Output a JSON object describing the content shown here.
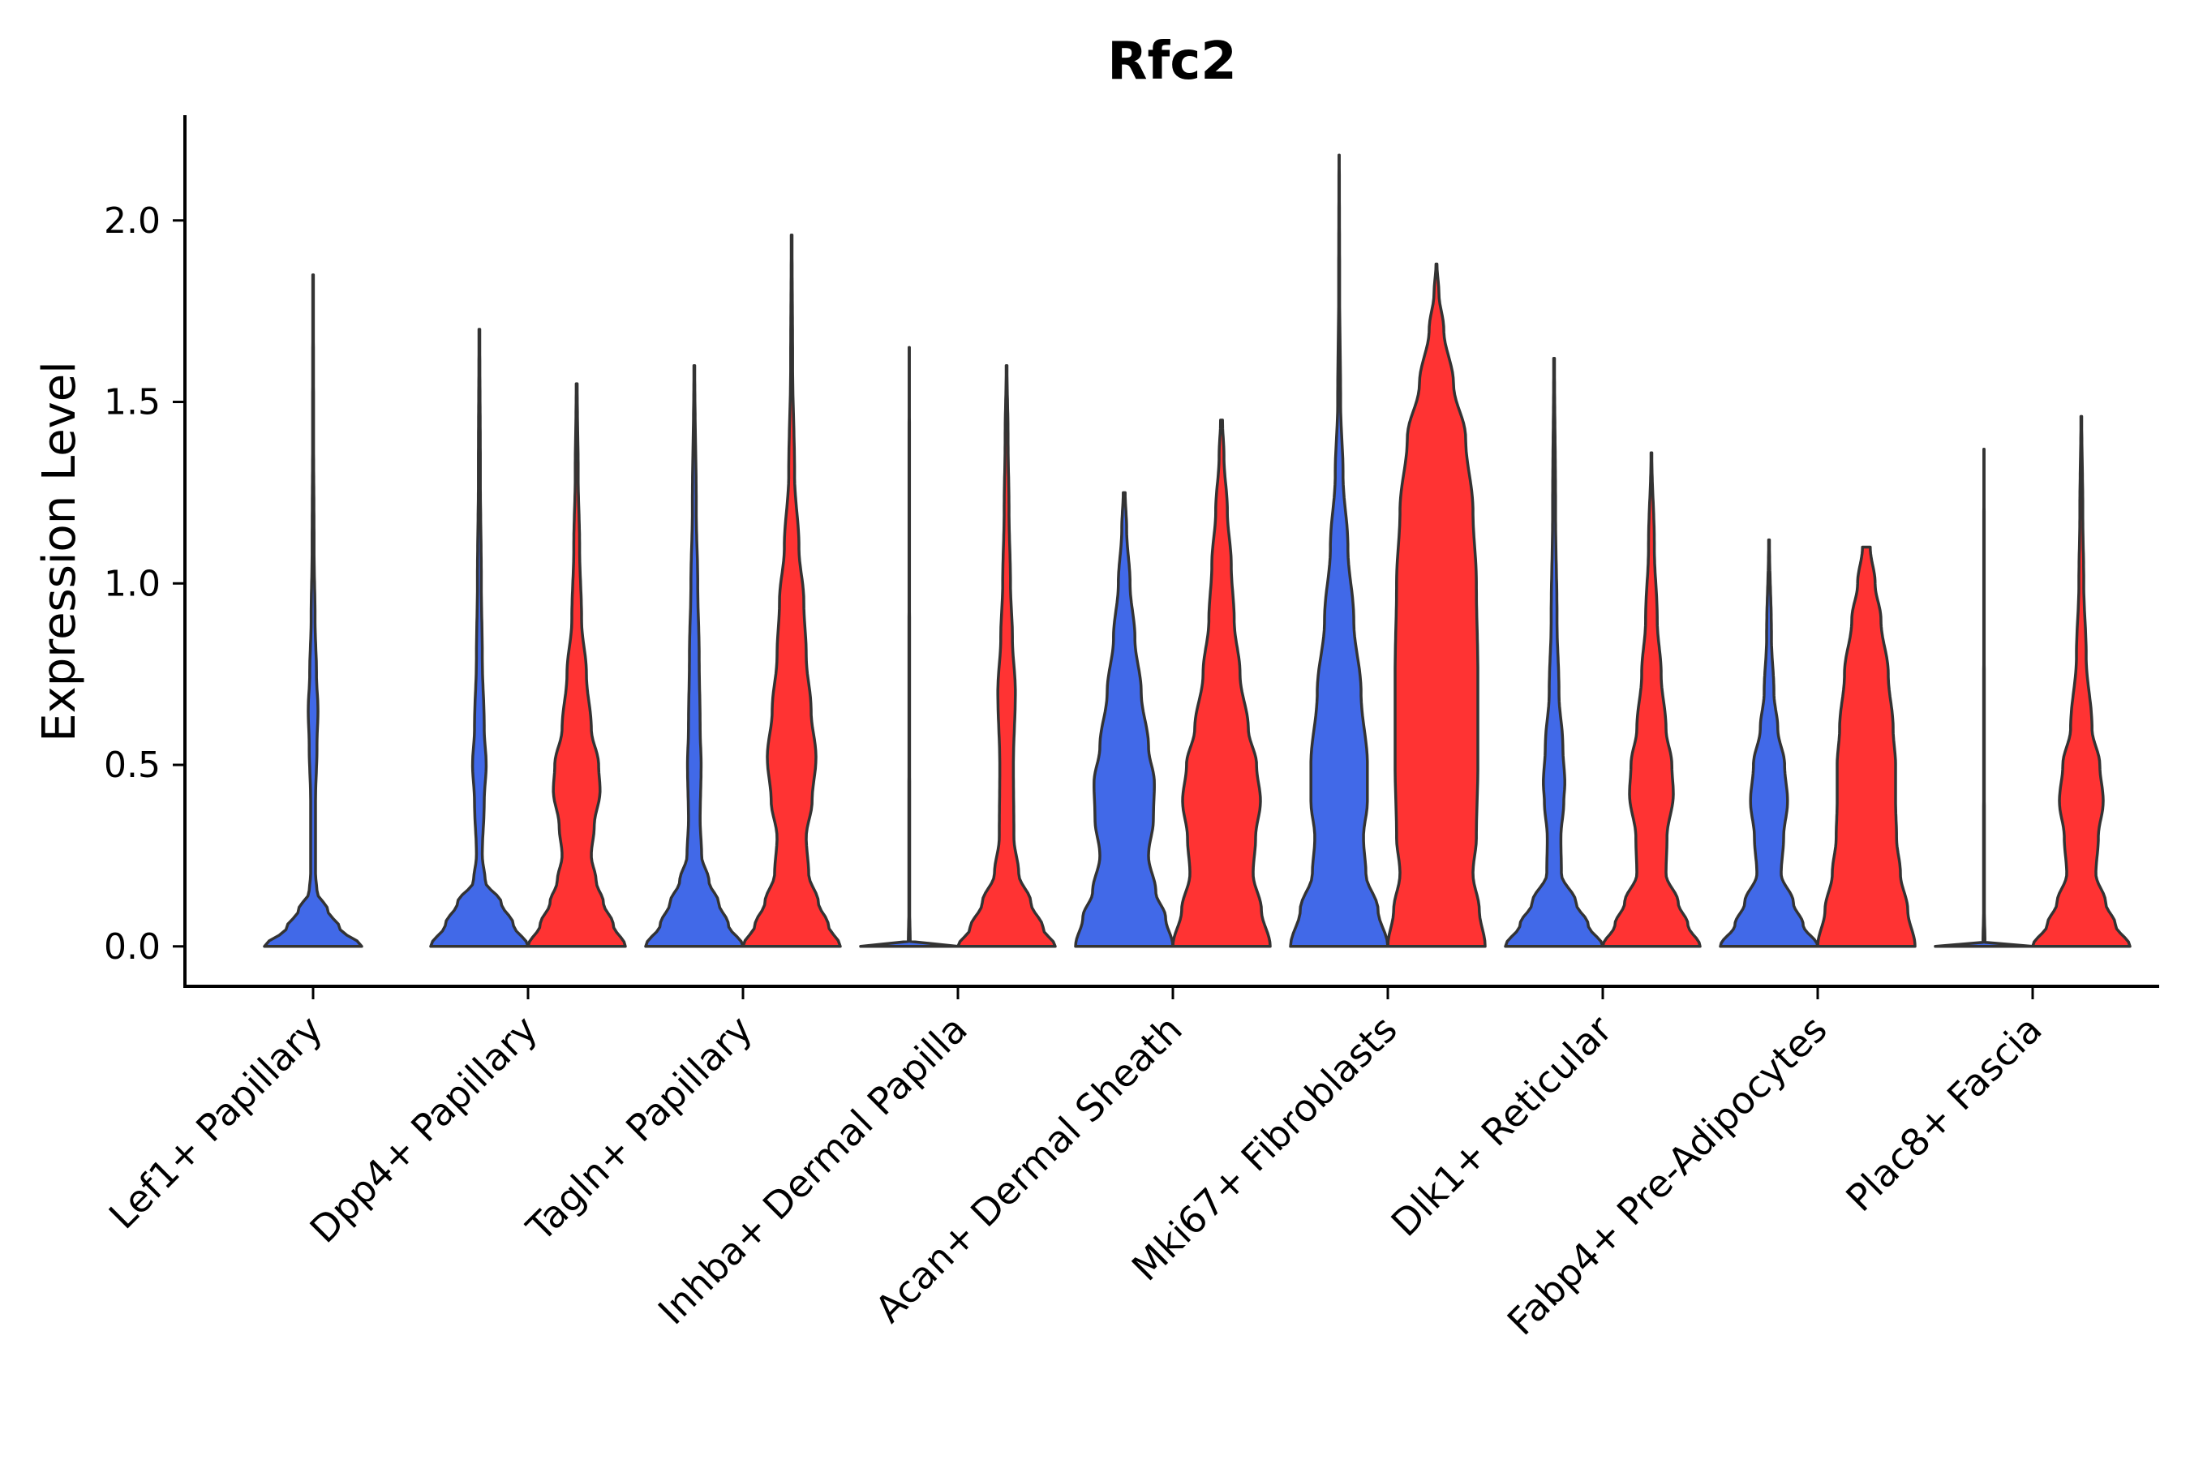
{
  "chart_data": {
    "type": "violin",
    "title": "Rfc2",
    "xlabel": "",
    "ylabel": "Expression Level",
    "ylim": [
      -0.11,
      2.29
    ],
    "yticks": [
      0.0,
      0.5,
      1.0,
      1.5,
      2.0
    ],
    "ytick_labels": [
      "0.0",
      "0.5",
      "1.0",
      "1.5",
      "2.0"
    ],
    "legend": "none",
    "grid": false,
    "series_colors": {
      "blue": "#4169e8",
      "red": "#ff3333"
    },
    "categories": [
      "Lef1+ Papillary",
      "Dpp4+ Papillary",
      "Tagln+ Papillary",
      "Inhba+ Dermal Papilla",
      "Acan+ Dermal Sheath",
      "Mki67+ Fibroblasts",
      "Dlk1+ Reticular",
      "Fabp4+ Pre-Adipocytes",
      "Plac8+ Fascia"
    ],
    "violins": [
      {
        "category": "Lef1+ Papillary",
        "group": "blue",
        "offset": 0,
        "max": 1.85,
        "profile": [
          [
            0,
            1.0
          ],
          [
            0.05,
            0.55
          ],
          [
            0.1,
            0.3
          ],
          [
            0.15,
            0.08
          ],
          [
            0.2,
            0.05
          ],
          [
            0.4,
            0.05
          ],
          [
            0.55,
            0.08
          ],
          [
            0.65,
            0.1
          ],
          [
            0.75,
            0.07
          ],
          [
            0.9,
            0.04
          ],
          [
            1.1,
            0.02
          ],
          [
            1.4,
            0.01
          ],
          [
            1.85,
            0.006
          ]
        ]
      },
      {
        "category": "Dpp4+ Papillary",
        "group": "blue",
        "offset": -1,
        "max": 1.7,
        "profile": [
          [
            0,
            1.0
          ],
          [
            0.06,
            0.7
          ],
          [
            0.12,
            0.45
          ],
          [
            0.18,
            0.12
          ],
          [
            0.25,
            0.06
          ],
          [
            0.4,
            0.1
          ],
          [
            0.5,
            0.14
          ],
          [
            0.6,
            0.1
          ],
          [
            0.8,
            0.06
          ],
          [
            1.0,
            0.04
          ],
          [
            1.3,
            0.02
          ],
          [
            1.7,
            0.008
          ]
        ]
      },
      {
        "category": "Dpp4+ Papillary",
        "group": "red",
        "offset": 1,
        "max": 1.55,
        "profile": [
          [
            0,
            1.0
          ],
          [
            0.06,
            0.75
          ],
          [
            0.12,
            0.55
          ],
          [
            0.18,
            0.4
          ],
          [
            0.25,
            0.3
          ],
          [
            0.33,
            0.36
          ],
          [
            0.43,
            0.48
          ],
          [
            0.5,
            0.45
          ],
          [
            0.6,
            0.3
          ],
          [
            0.75,
            0.2
          ],
          [
            0.9,
            0.1
          ],
          [
            1.1,
            0.06
          ],
          [
            1.3,
            0.03
          ],
          [
            1.55,
            0.01
          ]
        ]
      },
      {
        "category": "Tagln+ Papillary",
        "group": "blue",
        "offset": -1,
        "max": 1.6,
        "profile": [
          [
            0,
            1.0
          ],
          [
            0.06,
            0.7
          ],
          [
            0.12,
            0.5
          ],
          [
            0.18,
            0.3
          ],
          [
            0.25,
            0.15
          ],
          [
            0.35,
            0.12
          ],
          [
            0.5,
            0.14
          ],
          [
            0.6,
            0.12
          ],
          [
            0.8,
            0.1
          ],
          [
            1.0,
            0.07
          ],
          [
            1.2,
            0.04
          ],
          [
            1.6,
            0.008
          ]
        ]
      },
      {
        "category": "Tagln+ Papillary",
        "group": "red",
        "offset": 1,
        "max": 1.96,
        "profile": [
          [
            0,
            1.0
          ],
          [
            0.06,
            0.75
          ],
          [
            0.12,
            0.55
          ],
          [
            0.2,
            0.35
          ],
          [
            0.3,
            0.3
          ],
          [
            0.4,
            0.42
          ],
          [
            0.52,
            0.5
          ],
          [
            0.65,
            0.4
          ],
          [
            0.8,
            0.3
          ],
          [
            0.95,
            0.25
          ],
          [
            1.1,
            0.15
          ],
          [
            1.3,
            0.06
          ],
          [
            1.6,
            0.02
          ],
          [
            1.96,
            0.008
          ]
        ]
      },
      {
        "category": "Inhba+ Dermal Papilla",
        "group": "blue",
        "offset": -1,
        "max": 1.65,
        "profile": [
          [
            0,
            1.0
          ],
          [
            0.004,
            0.5
          ],
          [
            0.01,
            0.02
          ],
          [
            0.1,
            0.008
          ],
          [
            1.65,
            0.004
          ]
        ]
      },
      {
        "category": "Inhba+ Dermal Papilla",
        "group": "red",
        "offset": 1,
        "max": 1.6,
        "profile": [
          [
            0,
            1.0
          ],
          [
            0.05,
            0.75
          ],
          [
            0.12,
            0.5
          ],
          [
            0.2,
            0.25
          ],
          [
            0.3,
            0.15
          ],
          [
            0.5,
            0.14
          ],
          [
            0.7,
            0.18
          ],
          [
            0.85,
            0.12
          ],
          [
            1.0,
            0.08
          ],
          [
            1.2,
            0.05
          ],
          [
            1.4,
            0.03
          ],
          [
            1.6,
            0.008
          ]
        ]
      },
      {
        "category": "Acan+ Dermal Sheath",
        "group": "blue",
        "offset": -1,
        "max": 1.25,
        "profile": [
          [
            0,
            1.0
          ],
          [
            0.08,
            0.85
          ],
          [
            0.15,
            0.65
          ],
          [
            0.25,
            0.5
          ],
          [
            0.35,
            0.6
          ],
          [
            0.45,
            0.62
          ],
          [
            0.55,
            0.5
          ],
          [
            0.7,
            0.35
          ],
          [
            0.85,
            0.22
          ],
          [
            1.0,
            0.12
          ],
          [
            1.15,
            0.05
          ],
          [
            1.25,
            0.02
          ]
        ]
      },
      {
        "category": "Acan+ Dermal Sheath",
        "group": "red",
        "offset": 1,
        "max": 1.45,
        "profile": [
          [
            0,
            1.0
          ],
          [
            0.1,
            0.82
          ],
          [
            0.2,
            0.65
          ],
          [
            0.3,
            0.7
          ],
          [
            0.4,
            0.8
          ],
          [
            0.5,
            0.72
          ],
          [
            0.6,
            0.55
          ],
          [
            0.75,
            0.38
          ],
          [
            0.9,
            0.26
          ],
          [
            1.05,
            0.2
          ],
          [
            1.2,
            0.12
          ],
          [
            1.35,
            0.05
          ],
          [
            1.45,
            0.02
          ]
        ]
      },
      {
        "category": "Mki67+ Fibroblasts",
        "group": "blue",
        "offset": -1,
        "max": 2.18,
        "profile": [
          [
            0,
            1.0
          ],
          [
            0.1,
            0.8
          ],
          [
            0.2,
            0.55
          ],
          [
            0.3,
            0.5
          ],
          [
            0.4,
            0.58
          ],
          [
            0.5,
            0.58
          ],
          [
            0.7,
            0.45
          ],
          [
            0.9,
            0.3
          ],
          [
            1.1,
            0.18
          ],
          [
            1.3,
            0.08
          ],
          [
            1.5,
            0.03
          ],
          [
            1.8,
            0.01
          ],
          [
            2.18,
            0.004
          ]
        ]
      },
      {
        "category": "Mki67+ Fibroblasts",
        "group": "red",
        "offset": 1,
        "max": 1.88,
        "profile": [
          [
            0,
            1.0
          ],
          [
            0.1,
            0.88
          ],
          [
            0.2,
            0.75
          ],
          [
            0.3,
            0.82
          ],
          [
            0.5,
            0.85
          ],
          [
            0.75,
            0.85
          ],
          [
            1.0,
            0.82
          ],
          [
            1.2,
            0.75
          ],
          [
            1.4,
            0.6
          ],
          [
            1.55,
            0.35
          ],
          [
            1.7,
            0.15
          ],
          [
            1.8,
            0.05
          ],
          [
            1.88,
            0.01
          ]
        ]
      },
      {
        "category": "Dlk1+ Reticular",
        "group": "blue",
        "offset": -1,
        "max": 1.62,
        "profile": [
          [
            0,
            1.0
          ],
          [
            0.06,
            0.7
          ],
          [
            0.12,
            0.45
          ],
          [
            0.2,
            0.15
          ],
          [
            0.3,
            0.14
          ],
          [
            0.4,
            0.2
          ],
          [
            0.45,
            0.22
          ],
          [
            0.55,
            0.18
          ],
          [
            0.7,
            0.1
          ],
          [
            0.9,
            0.06
          ],
          [
            1.2,
            0.03
          ],
          [
            1.62,
            0.008
          ]
        ]
      },
      {
        "category": "Dlk1+ Reticular",
        "group": "red",
        "offset": 1,
        "max": 1.36,
        "profile": [
          [
            0,
            1.0
          ],
          [
            0.06,
            0.75
          ],
          [
            0.12,
            0.55
          ],
          [
            0.2,
            0.3
          ],
          [
            0.3,
            0.32
          ],
          [
            0.42,
            0.45
          ],
          [
            0.5,
            0.42
          ],
          [
            0.6,
            0.3
          ],
          [
            0.75,
            0.2
          ],
          [
            0.9,
            0.12
          ],
          [
            1.1,
            0.06
          ],
          [
            1.36,
            0.008
          ]
        ]
      },
      {
        "category": "Fabp4+ Pre-Adipocytes",
        "group": "blue",
        "offset": -1,
        "max": 1.12,
        "profile": [
          [
            0,
            1.0
          ],
          [
            0.06,
            0.7
          ],
          [
            0.12,
            0.5
          ],
          [
            0.2,
            0.25
          ],
          [
            0.3,
            0.3
          ],
          [
            0.4,
            0.38
          ],
          [
            0.5,
            0.32
          ],
          [
            0.6,
            0.18
          ],
          [
            0.7,
            0.1
          ],
          [
            0.85,
            0.05
          ],
          [
            1.12,
            0.008
          ]
        ]
      },
      {
        "category": "Fabp4+ Pre-Adipocytes",
        "group": "red",
        "offset": 1,
        "max": 1.1,
        "profile": [
          [
            0,
            1.0
          ],
          [
            0.1,
            0.85
          ],
          [
            0.2,
            0.7
          ],
          [
            0.3,
            0.62
          ],
          [
            0.4,
            0.6
          ],
          [
            0.5,
            0.6
          ],
          [
            0.6,
            0.55
          ],
          [
            0.75,
            0.45
          ],
          [
            0.9,
            0.3
          ],
          [
            1.0,
            0.18
          ],
          [
            1.1,
            0.08
          ]
        ]
      },
      {
        "category": "Plac8+ Fascia",
        "group": "blue",
        "offset": -1,
        "max": 1.37,
        "profile": [
          [
            0,
            1.0
          ],
          [
            0.004,
            0.5
          ],
          [
            0.01,
            0.02
          ],
          [
            0.1,
            0.008
          ],
          [
            1.37,
            0.004
          ]
        ]
      },
      {
        "category": "Plac8+ Fascia",
        "group": "red",
        "offset": 1,
        "max": 1.46,
        "profile": [
          [
            0,
            1.0
          ],
          [
            0.06,
            0.7
          ],
          [
            0.12,
            0.5
          ],
          [
            0.2,
            0.3
          ],
          [
            0.3,
            0.35
          ],
          [
            0.4,
            0.45
          ],
          [
            0.5,
            0.38
          ],
          [
            0.6,
            0.22
          ],
          [
            0.8,
            0.1
          ],
          [
            1.0,
            0.05
          ],
          [
            1.2,
            0.03
          ],
          [
            1.46,
            0.008
          ]
        ]
      }
    ]
  }
}
